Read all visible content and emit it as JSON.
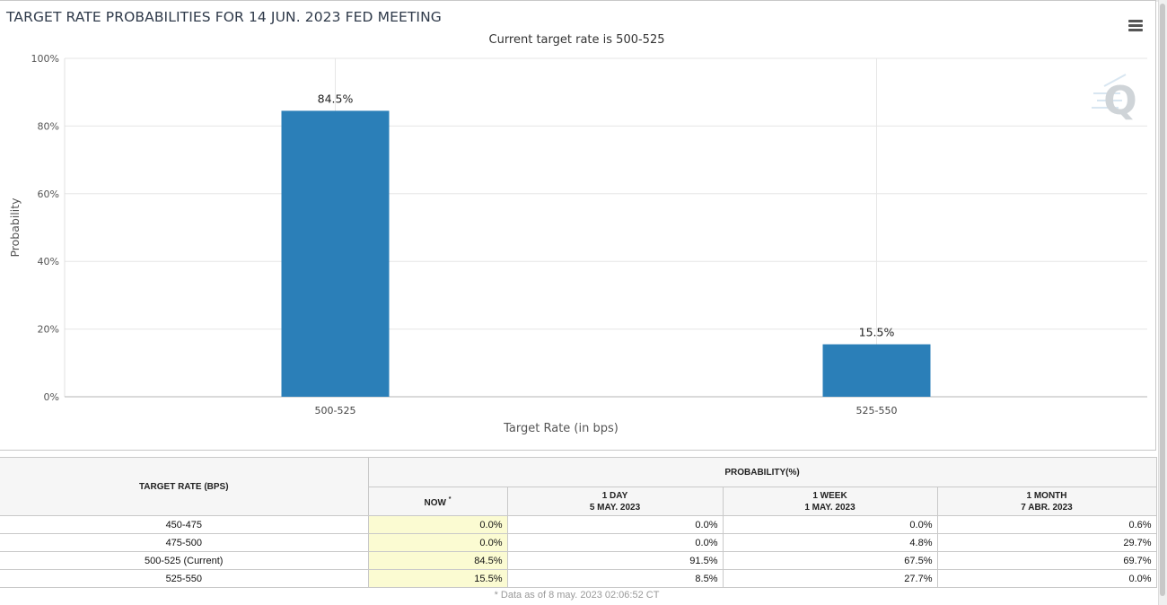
{
  "chart": {
    "title": "TARGET RATE PROBABILITIES FOR 14 JUN. 2023 FED MEETING",
    "subtitle": "Current target rate is 500-525",
    "menu_icon": "hamburger-menu-icon",
    "watermark_icon": "q-watermark-icon"
  },
  "chart_data": {
    "type": "bar",
    "title": "TARGET RATE PROBABILITIES FOR 14 JUN. 2023 FED MEETING",
    "subtitle": "Current target rate is 500-525",
    "categories": [
      "500-525",
      "525-550"
    ],
    "values": [
      84.5,
      15.5
    ],
    "data_labels": [
      "84.5%",
      "15.5%"
    ],
    "xlabel": "Target Rate (in bps)",
    "ylabel": "Probability",
    "ylim": [
      0,
      100
    ],
    "yticks": [
      0,
      20,
      40,
      60,
      80,
      100
    ],
    "ytick_labels": [
      "0%",
      "20%",
      "40%",
      "60%",
      "80%",
      "100%"
    ],
    "grid": true,
    "bar_color": "#2b7fb8"
  },
  "table": {
    "target_rate_header": "TARGET RATE (BPS)",
    "probability_header": "PROBABILITY(%)",
    "columns": [
      {
        "line1": "NOW",
        "line2": "",
        "star": "*"
      },
      {
        "line1": "1 DAY",
        "line2": "5 MAY. 2023",
        "star": ""
      },
      {
        "line1": "1 WEEK",
        "line2": "1 MAY. 2023",
        "star": ""
      },
      {
        "line1": "1 MONTH",
        "line2": "7 ABR. 2023",
        "star": ""
      }
    ],
    "rows": [
      {
        "rate": "450-475",
        "now": "0.0%",
        "day": "0.0%",
        "week": "0.0%",
        "month": "0.6%"
      },
      {
        "rate": "475-500",
        "now": "0.0%",
        "day": "0.0%",
        "week": "4.8%",
        "month": "29.7%"
      },
      {
        "rate": "500-525 (Current)",
        "now": "84.5%",
        "day": "91.5%",
        "week": "67.5%",
        "month": "69.7%"
      },
      {
        "rate": "525-550",
        "now": "15.5%",
        "day": "8.5%",
        "week": "27.7%",
        "month": "0.0%"
      }
    ],
    "now_highlight_color": "#fbfbd2",
    "footnote": "* Data as of 8 may. 2023 02:06:52 CT"
  }
}
